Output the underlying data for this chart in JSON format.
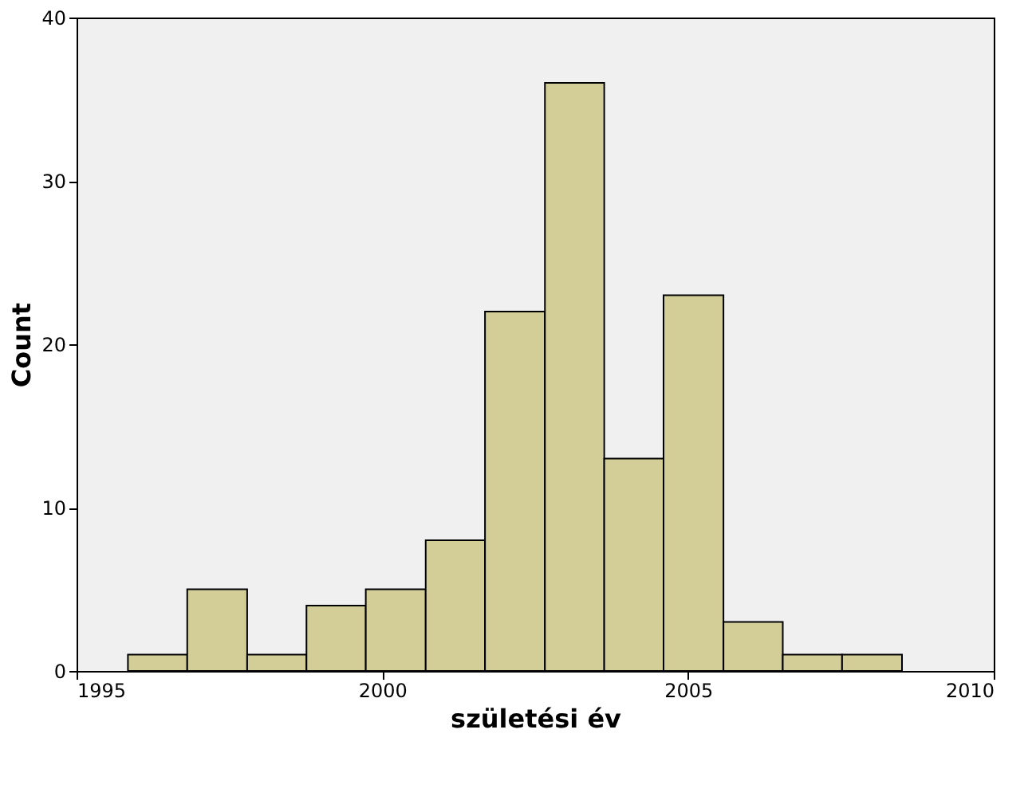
{
  "chart_data": {
    "type": "histogram",
    "xlabel": "születési év",
    "ylabel": "Count",
    "bins": [
      1995.84,
      1996.81,
      1997.79,
      1998.76,
      1999.73,
      2000.71,
      2001.68,
      2002.66,
      2003.63,
      2004.6,
      2005.58,
      2006.55,
      2007.52,
      2008.5
    ],
    "values": [
      1,
      5,
      1,
      4,
      5,
      8,
      22,
      36,
      13,
      23,
      3,
      1,
      1
    ],
    "color": "#d3ce98",
    "xlim": [
      1995,
      2010
    ],
    "xticks": [
      1995,
      2000,
      2005,
      2010
    ],
    "ylim": [
      0,
      40
    ],
    "yticks": [
      0,
      10,
      20,
      30,
      40
    ],
    "grid": false
  }
}
